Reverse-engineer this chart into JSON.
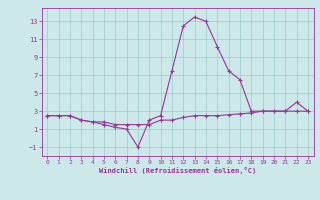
{
  "hours": [
    0,
    1,
    2,
    3,
    4,
    5,
    6,
    7,
    8,
    9,
    10,
    11,
    12,
    13,
    14,
    15,
    16,
    17,
    18,
    19,
    20,
    21,
    22,
    23
  ],
  "temp": [
    2.5,
    2.5,
    2.5,
    2.0,
    1.8,
    1.8,
    1.5,
    1.5,
    1.5,
    1.5,
    2.0,
    2.0,
    2.3,
    2.5,
    2.5,
    2.5,
    2.6,
    2.7,
    2.8,
    3.0,
    3.0,
    3.0,
    3.0,
    3.0
  ],
  "windchill": [
    2.5,
    2.5,
    2.5,
    2.0,
    1.8,
    1.5,
    1.2,
    1.0,
    -1.0,
    2.0,
    2.5,
    7.5,
    12.5,
    13.5,
    13.0,
    10.2,
    7.5,
    6.5,
    3.0,
    3.0,
    3.0,
    3.0,
    4.0,
    3.0
  ],
  "line_color": "#993399",
  "bg_color": "#cce8e8",
  "grid_color": "#99cccc",
  "text_color": "#993399",
  "xlabel": "Windchill (Refroidissement éolien,°C)",
  "xlim": [
    -0.5,
    23.5
  ],
  "ylim": [
    -2,
    14.5
  ],
  "yticks": [
    -1,
    1,
    3,
    5,
    7,
    9,
    11,
    13
  ],
  "xticks": [
    0,
    1,
    2,
    3,
    4,
    5,
    6,
    7,
    8,
    9,
    10,
    11,
    12,
    13,
    14,
    15,
    16,
    17,
    18,
    19,
    20,
    21,
    22,
    23
  ]
}
